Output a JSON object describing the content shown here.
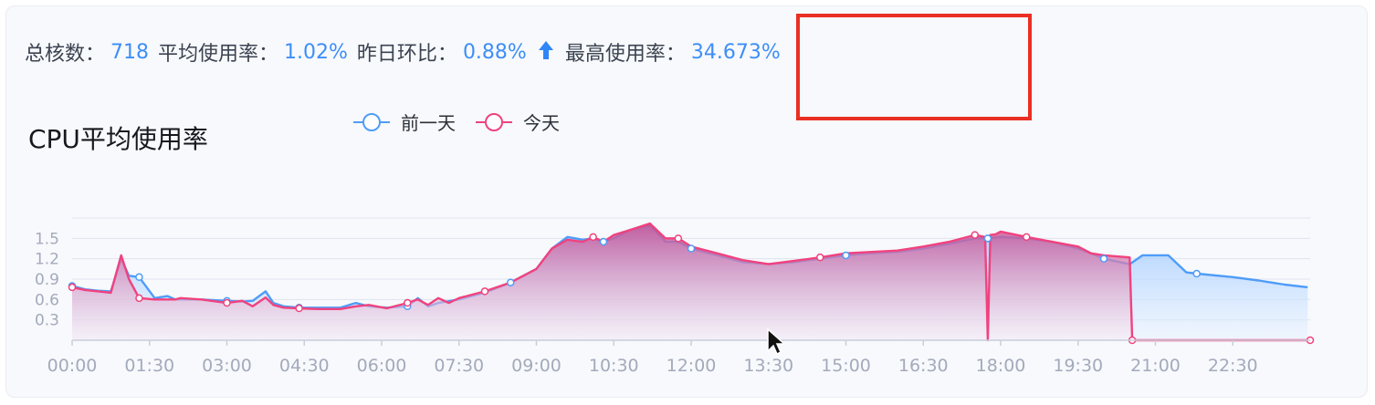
{
  "stats": {
    "total_cores_label": "总核数：",
    "total_cores_value": "718",
    "avg_usage_label": "平均使用率：",
    "avg_usage_value": "1.02%",
    "dod_label": "昨日环比：",
    "dod_value": "0.88%",
    "dod_trend_icon": "arrow-up-icon",
    "max_usage_label": "最高使用率：",
    "max_usage_value": "34.673%"
  },
  "chart_data": {
    "type": "area",
    "title": "CPU平均使用率",
    "legend_position": "top-center",
    "x_ticks": [
      "00:00",
      "01:30",
      "03:00",
      "04:30",
      "06:00",
      "07:30",
      "09:00",
      "10:30",
      "12:00",
      "13:30",
      "15:00",
      "16:30",
      "18:00",
      "19:30",
      "21:00",
      "22:30"
    ],
    "y_ticks": [
      0.3,
      0.6,
      0.9,
      1.2,
      1.5
    ],
    "xlim": [
      0,
      24
    ],
    "ylim": [
      0,
      1.8
    ],
    "series": [
      {
        "name": "前一天",
        "color": "#4f9cf9",
        "x": [
          0,
          0.25,
          0.5,
          0.75,
          0.95,
          1.1,
          1.3,
          1.6,
          1.85,
          2.0,
          2.1,
          2.5,
          3.0,
          3.3,
          3.5,
          3.75,
          3.9,
          4.1,
          4.4,
          4.75,
          5.2,
          5.5,
          5.75,
          6.1,
          6.5,
          6.7,
          6.9,
          7.1,
          7.5,
          8.0,
          8.5,
          9.0,
          9.3,
          9.6,
          9.9,
          10.1,
          10.3,
          10.5,
          10.8,
          11.2,
          11.5,
          11.75,
          12.0,
          12.5,
          13.0,
          13.5,
          14.0,
          14.5,
          15.0,
          15.5,
          16.0,
          16.5,
          17.0,
          17.5,
          17.75,
          18.0,
          18.5,
          19.0,
          19.5,
          19.75,
          20.0,
          20.5,
          20.75,
          21.0,
          21.25,
          21.6,
          21.8,
          22.5,
          23.0,
          23.5,
          23.95
        ],
        "values": [
          0.8,
          0.75,
          0.73,
          0.72,
          1.2,
          0.95,
          0.93,
          0.62,
          0.65,
          0.6,
          0.6,
          0.6,
          0.58,
          0.57,
          0.58,
          0.72,
          0.55,
          0.5,
          0.48,
          0.48,
          0.48,
          0.55,
          0.5,
          0.48,
          0.5,
          0.62,
          0.5,
          0.55,
          0.6,
          0.7,
          0.85,
          1.05,
          1.35,
          1.52,
          1.48,
          1.5,
          1.45,
          1.5,
          1.62,
          1.7,
          1.45,
          1.45,
          1.35,
          1.25,
          1.15,
          1.12,
          1.15,
          1.2,
          1.25,
          1.28,
          1.3,
          1.35,
          1.42,
          1.5,
          1.5,
          1.52,
          1.5,
          1.45,
          1.35,
          1.28,
          1.2,
          1.12,
          1.25,
          1.25,
          1.25,
          1.0,
          0.98,
          0.93,
          0.88,
          0.82,
          0.78
        ]
      },
      {
        "name": "今天",
        "color": "#f0427e",
        "x": [
          0,
          0.25,
          0.5,
          0.75,
          0.95,
          1.1,
          1.3,
          1.6,
          1.85,
          2.0,
          2.1,
          2.5,
          3.0,
          3.3,
          3.5,
          3.75,
          3.9,
          4.1,
          4.4,
          4.75,
          5.2,
          5.5,
          5.75,
          6.1,
          6.5,
          6.7,
          6.9,
          7.1,
          7.3,
          7.5,
          8.0,
          8.5,
          9.0,
          9.3,
          9.6,
          9.9,
          10.1,
          10.3,
          10.5,
          10.8,
          11.2,
          11.5,
          11.75,
          12.0,
          12.5,
          13.0,
          13.5,
          14.0,
          14.5,
          15.0,
          15.5,
          16.0,
          16.5,
          17.0,
          17.5,
          17.7,
          17.75,
          17.8,
          17.9,
          18.0,
          18.5,
          19.0,
          19.5,
          19.75,
          20.0,
          20.5,
          20.55,
          20.7,
          21.0,
          22.0,
          22.5,
          23.0,
          24.0
        ],
        "values": [
          0.78,
          0.74,
          0.72,
          0.7,
          1.25,
          0.9,
          0.62,
          0.6,
          0.6,
          0.6,
          0.62,
          0.6,
          0.55,
          0.58,
          0.5,
          0.63,
          0.52,
          0.48,
          0.47,
          0.46,
          0.46,
          0.5,
          0.52,
          0.47,
          0.55,
          0.6,
          0.52,
          0.62,
          0.55,
          0.62,
          0.72,
          0.85,
          1.05,
          1.35,
          1.48,
          1.45,
          1.52,
          1.45,
          1.55,
          1.62,
          1.72,
          1.5,
          1.5,
          1.38,
          1.28,
          1.18,
          1.12,
          1.17,
          1.22,
          1.28,
          1.3,
          1.32,
          1.38,
          1.45,
          1.55,
          1.52,
          0.0,
          1.55,
          1.56,
          1.6,
          1.52,
          1.45,
          1.38,
          1.28,
          1.25,
          1.22,
          0.0,
          0.0,
          0.0,
          0.0,
          0.0,
          0.0,
          0.0
        ]
      }
    ]
  }
}
